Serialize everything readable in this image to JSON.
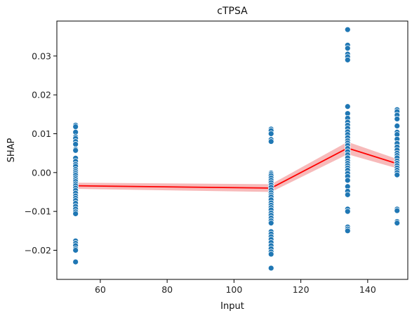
{
  "chart_data": {
    "type": "scatter",
    "title": "cTPSA",
    "xlabel": "Input",
    "ylabel": "SHAP",
    "xlim": [
      47,
      152
    ],
    "ylim": [
      -0.0275,
      0.039
    ],
    "xticks": [
      60,
      80,
      100,
      120,
      140
    ],
    "yticks": [
      -0.02,
      -0.01,
      0.0,
      0.01,
      0.02,
      0.03
    ],
    "ytick_labels": [
      "−0.02",
      "−0.01",
      "0.00",
      "0.01",
      "0.02",
      "0.03"
    ],
    "grid": false,
    "colors": {
      "points": "#1f77b4",
      "trend": "#ff0000",
      "band": "#f4a3a3"
    },
    "points": [
      {
        "x": 52.6,
        "y": [
          0.0122,
          0.0118,
          0.0104,
          0.0092,
          0.0088,
          0.008,
          0.0073,
          0.006,
          0.0057,
          0.0037,
          0.0029,
          0.0021,
          0.0016,
          0.0008,
          0.0003,
          -0.0002,
          -0.0007,
          -0.0013,
          -0.0018,
          -0.0023,
          -0.0029,
          -0.0034,
          -0.004,
          -0.0046,
          -0.0053,
          -0.006,
          -0.0066,
          -0.0072,
          -0.0079,
          -0.0087,
          -0.0094,
          -0.0101,
          -0.0106,
          -0.0176,
          -0.0182,
          -0.0188,
          -0.0196,
          -0.02,
          -0.023
        ]
      },
      {
        "x": 111.1,
        "y": [
          0.0112,
          0.0108,
          0.01,
          0.0085,
          0.008,
          -0.0001,
          -0.0004,
          -0.0008,
          -0.0014,
          -0.002,
          -0.0026,
          -0.0032,
          -0.0038,
          -0.0045,
          -0.0052,
          -0.0058,
          -0.0063,
          -0.007,
          -0.0078,
          -0.0084,
          -0.009,
          -0.0096,
          -0.0104,
          -0.011,
          -0.0117,
          -0.0124,
          -0.013,
          -0.0152,
          -0.0158,
          -0.0165,
          -0.0172,
          -0.018,
          -0.0188,
          -0.0196,
          -0.0204,
          -0.021,
          -0.0246
        ]
      },
      {
        "x": 134.0,
        "y": [
          0.0368,
          0.0328,
          0.032,
          0.0305,
          0.0298,
          0.029,
          0.017,
          0.0152,
          0.014,
          0.013,
          0.0122,
          0.0114,
          0.0105,
          0.0098,
          0.009,
          0.0082,
          0.0076,
          0.007,
          0.0062,
          0.0054,
          0.0046,
          0.0038,
          0.003,
          0.0024,
          0.0018,
          0.0012,
          0.0006,
          -0.0002,
          -0.001,
          -0.002,
          -0.0036,
          -0.0048,
          -0.0057,
          -0.0094,
          -0.01,
          -0.014,
          -0.0145,
          -0.015
        ]
      },
      {
        "x": 148.8,
        "y": [
          0.0162,
          0.0157,
          0.0148,
          0.0138,
          0.012,
          0.0104,
          0.0098,
          0.0086,
          0.0075,
          0.0066,
          0.0058,
          0.005,
          0.0044,
          0.0038,
          0.003,
          0.0024,
          0.0018,
          0.0012,
          0.0006,
          0.0,
          -0.0006,
          -0.0094,
          -0.0098,
          -0.0126,
          -0.013
        ]
      }
    ],
    "trend": {
      "x": [
        52.6,
        111.1,
        134.0,
        148.8
      ],
      "y": [
        -0.0034,
        -0.004,
        0.0063,
        0.0023
      ],
      "lower": [
        -0.0042,
        -0.005,
        0.0047,
        0.0011
      ],
      "upper": [
        -0.0026,
        -0.003,
        0.0079,
        0.0035
      ]
    }
  }
}
